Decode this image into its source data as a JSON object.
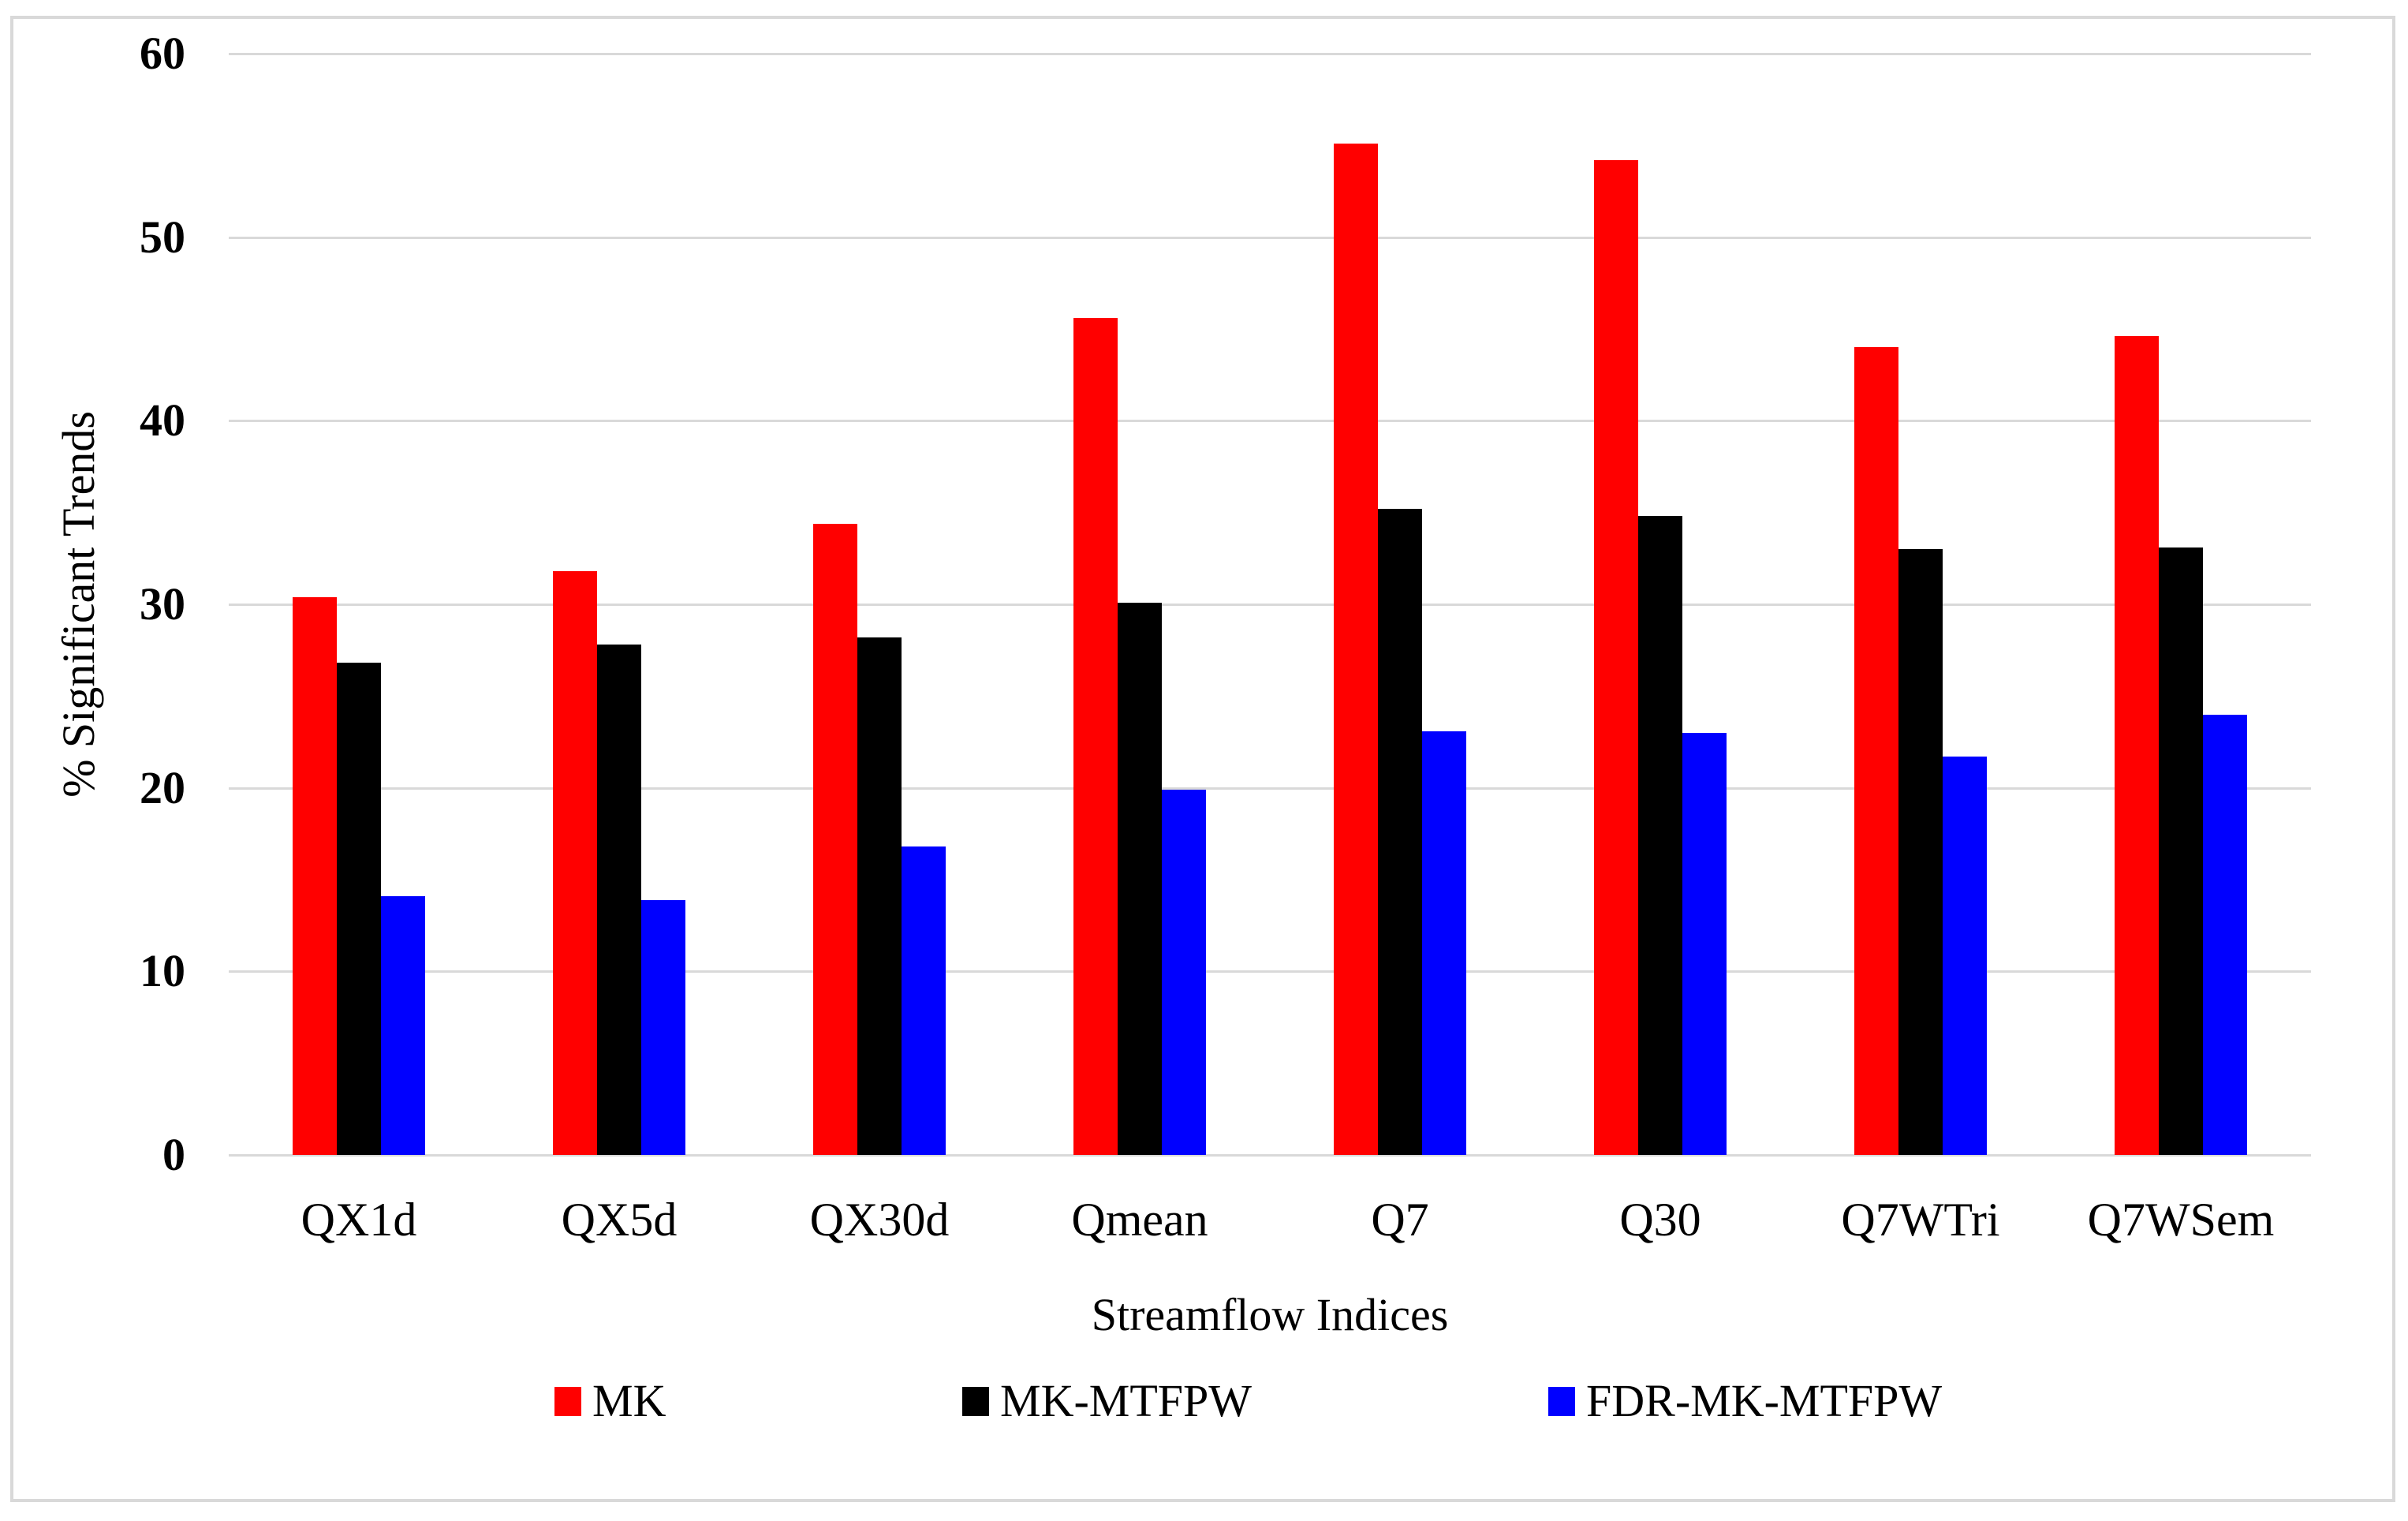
{
  "figure": {
    "background": "#FFFFFF",
    "border_color": "#D9D9D9"
  },
  "chart_data": {
    "type": "bar",
    "title": "",
    "xlabel": "Streamflow Indices",
    "ylabel": "% Significant Trends",
    "categories": [
      "QX1d",
      "QX5d",
      "QX30d",
      "Qmean",
      "Q7",
      "Q30",
      "Q7WTri",
      "Q7WSem"
    ],
    "series": [
      {
        "name": "MK",
        "color": "#FF0000",
        "values": [
          30.4,
          31.8,
          34.4,
          45.6,
          55.1,
          54.2,
          44.0,
          44.6
        ]
      },
      {
        "name": "MK-MTFPW",
        "color": "#000000",
        "values": [
          26.8,
          27.8,
          28.2,
          30.1,
          35.2,
          34.8,
          33.0,
          33.1
        ]
      },
      {
        "name": "FDR-MK-MTFPW",
        "color": "#0000FF",
        "values": [
          14.1,
          13.9,
          16.8,
          19.9,
          23.1,
          23.0,
          21.7,
          24.0
        ]
      }
    ],
    "ylim": [
      0,
      60
    ],
    "ytick_step": 10,
    "yticks": [
      "0",
      "10",
      "20",
      "30",
      "40",
      "50",
      "60"
    ],
    "grid": "horizontal",
    "gridline_color": "#D9D9D9",
    "legend_position": "bottom"
  }
}
